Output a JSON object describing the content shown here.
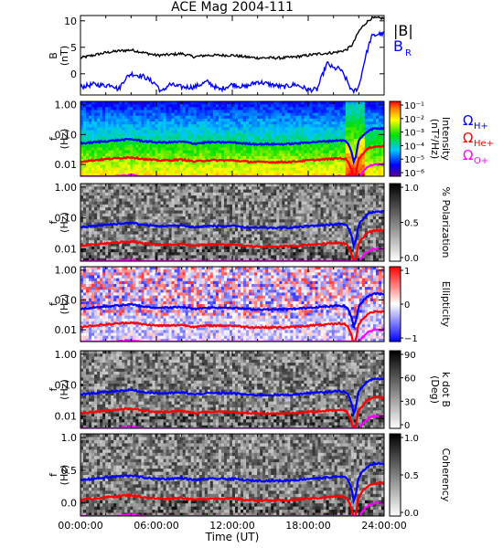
{
  "title": "ACE Mag 2004-111",
  "x_axis": {
    "label": "Time (UT)",
    "ticks": [
      "00:00:00",
      "06:00:00",
      "12:00:00",
      "18:00:00",
      "24:00:00"
    ],
    "range_hours": [
      0,
      24
    ]
  },
  "legend_top": [
    {
      "label": "|B|",
      "color": "#000000"
    },
    {
      "label": "B",
      "sub": "R",
      "color": "#0000ff"
    }
  ],
  "legend_freq": [
    {
      "label": "Ω",
      "sub": "H+",
      "color": "#0000ff"
    },
    {
      "label": "Ω",
      "sub": "He+",
      "color": "#ff0000"
    },
    {
      "label": "Ω",
      "sub": "O+",
      "color": "#ff00ff"
    }
  ],
  "colors": {
    "H": "#0000ff",
    "He": "#ff0000",
    "O": "#ff00ff",
    "B": "#000000",
    "BR": "#0000ff"
  },
  "chart_data": [
    {
      "type": "line",
      "ylabel": "B",
      "ylabel2": "(nT)",
      "ylim": [
        -4,
        11
      ],
      "yticks": [
        "10",
        "5",
        "0"
      ],
      "series": [
        {
          "name": "|B|",
          "x": [
            0,
            1,
            2,
            3,
            4,
            5,
            6,
            7,
            8,
            9,
            10,
            11,
            12,
            13,
            14,
            15,
            16,
            17,
            18,
            19,
            20,
            20.5,
            21,
            21.5,
            22,
            22.5,
            23,
            23.5,
            24
          ],
          "y": [
            3,
            3.5,
            4,
            4.3,
            4.5,
            4,
            3.5,
            3.6,
            3.8,
            3.2,
            3.5,
            3.5,
            3.5,
            3.2,
            3,
            3,
            3,
            3.2,
            3.5,
            3.8,
            4,
            4.2,
            4.5,
            5.5,
            8,
            9.5,
            10.5,
            10.5,
            10.5
          ]
        },
        {
          "name": "B_R",
          "x": [
            0,
            1,
            2,
            2.5,
            3,
            3.5,
            4,
            5,
            6,
            6.4,
            7,
            8,
            9,
            10,
            11,
            12,
            13,
            14,
            15,
            16,
            17,
            18,
            18.7,
            19,
            19.5,
            20,
            20.5,
            21,
            21.5,
            22,
            22.5,
            23,
            23.5,
            24
          ],
          "y": [
            -2.5,
            -2,
            -2.2,
            -2,
            -3,
            -1,
            0,
            -0.5,
            -2,
            -3.5,
            -2,
            -2.5,
            -2.5,
            -1.5,
            -3,
            -2,
            -2.5,
            -1.5,
            -2,
            -2.5,
            -2,
            -3,
            -3,
            -1,
            2,
            1,
            1,
            -1,
            -3.5,
            -2.5,
            3,
            7,
            7.5,
            7.5
          ]
        }
      ]
    },
    {
      "type": "heatmap",
      "name": "intensity",
      "ylabel": "f",
      "ylabel2": "(Hz)",
      "ylim": [
        0.004,
        1.3
      ],
      "yticks": [
        "1.00",
        "0.10",
        "0.01"
      ],
      "colorbar": {
        "label": "Intensity",
        "label2": "(nT²/Hz)",
        "ticks": [
          "10⁻¹",
          "10⁻²",
          "10⁻³",
          "10⁻⁴",
          "10⁻⁵",
          "10⁻⁶"
        ],
        "scale": "rainbow"
      }
    },
    {
      "type": "heatmap",
      "name": "polarization",
      "ylabel": "f",
      "ylabel2": "(Hz)",
      "ylim": [
        0.004,
        1.3
      ],
      "yticks": [
        "1.00",
        "0.10",
        "0.01"
      ],
      "colorbar": {
        "label": "% Polarization",
        "label2": "",
        "ticks": [
          "1.0",
          "0.5",
          "0.0"
        ],
        "scale": "gray"
      }
    },
    {
      "type": "heatmap",
      "name": "ellipticity",
      "ylabel": "f",
      "ylabel2": "(Hz)",
      "ylim": [
        0.004,
        1.3
      ],
      "yticks": [
        "1.00",
        "0.10",
        "0.01"
      ],
      "colorbar": {
        "label": "Ellipticity",
        "label2": "",
        "ticks": [
          "1",
          "0",
          "−1"
        ],
        "scale": "bwr"
      }
    },
    {
      "type": "heatmap",
      "name": "kdotb",
      "ylabel": "f",
      "ylabel2": "(Hz)",
      "ylim": [
        0.004,
        1.3
      ],
      "yticks": [
        "1.00",
        "0.10",
        "0.01"
      ],
      "colorbar": {
        "label": "k dot B",
        "label2": "(Deg)",
        "ticks": [
          "90",
          "60",
          "30",
          "0"
        ],
        "scale": "gray"
      }
    },
    {
      "type": "heatmap",
      "name": "coherency",
      "ylabel": "f",
      "ylabel2": "(Hz)",
      "ylim": [
        0.004,
        1.3
      ],
      "yticks": [
        "1.0",
        "0.5",
        "0.0"
      ],
      "colorbar": {
        "label": "Coherency",
        "label2": "",
        "ticks": [
          "1.0",
          "0.5",
          "0.0"
        ],
        "scale": "gray"
      }
    }
  ],
  "gyrofrequencies_hz": {
    "x": [
      0,
      1,
      2,
      3,
      4,
      5,
      6,
      7,
      8,
      9,
      10,
      11,
      12,
      13,
      14,
      15,
      16,
      17,
      18,
      19,
      20,
      20.5,
      21,
      21.3,
      21.6,
      21.8,
      22,
      22.4,
      22.8,
      23.2,
      23.6,
      24
    ],
    "H+": [
      0.05,
      0.055,
      0.06,
      0.065,
      0.07,
      0.06,
      0.055,
      0.055,
      0.058,
      0.05,
      0.055,
      0.055,
      0.055,
      0.05,
      0.048,
      0.048,
      0.048,
      0.05,
      0.055,
      0.058,
      0.062,
      0.065,
      0.06,
      0.035,
      0.012,
      0.02,
      0.06,
      0.1,
      0.14,
      0.16,
      0.16,
      0.16
    ],
    "He+": [
      0.0125,
      0.0137,
      0.015,
      0.0162,
      0.0175,
      0.015,
      0.0137,
      0.0137,
      0.0145,
      0.0125,
      0.0137,
      0.0137,
      0.0137,
      0.0125,
      0.012,
      0.012,
      0.012,
      0.0125,
      0.0137,
      0.0145,
      0.0155,
      0.0162,
      0.015,
      0.0088,
      0.003,
      0.005,
      0.015,
      0.025,
      0.035,
      0.04,
      0.04,
      0.04
    ],
    "O+": [
      0.0031,
      0.0034,
      0.0037,
      0.004,
      0.0044,
      0.0037,
      0.0034,
      0.0034,
      0.0036,
      0.0031,
      0.0034,
      0.0034,
      0.0034,
      0.0031,
      0.003,
      0.003,
      0.003,
      0.0031,
      0.0034,
      0.0036,
      0.0039,
      0.004,
      0.0037,
      0.0022,
      0.0008,
      0.0012,
      0.0037,
      0.0062,
      0.0087,
      0.01,
      0.01,
      0.01
    ]
  }
}
